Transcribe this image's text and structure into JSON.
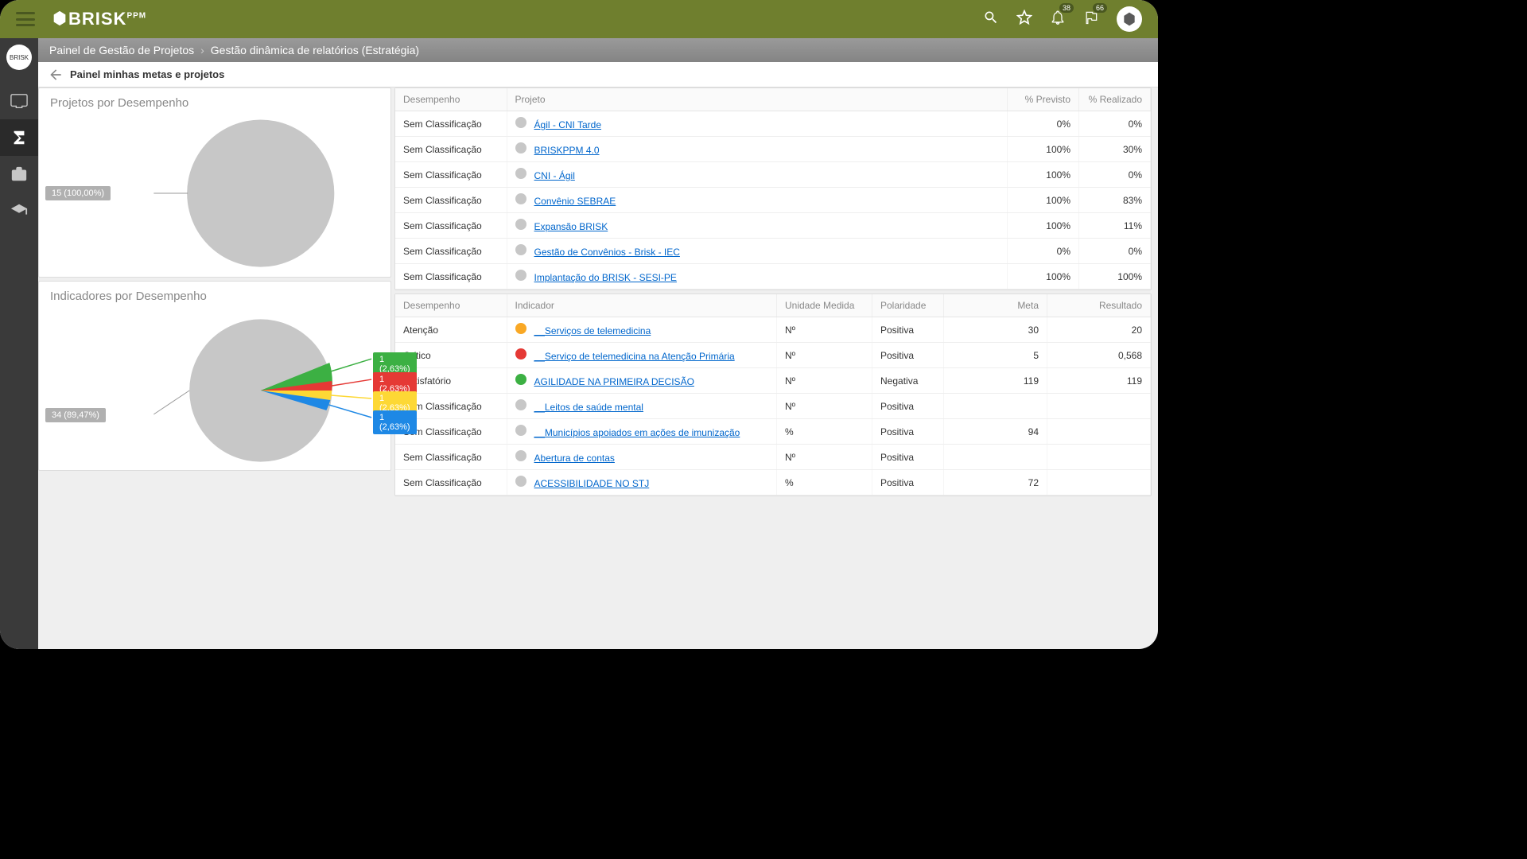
{
  "header": {
    "logo_text": "BRISK",
    "logo_sub": "PPM",
    "notif_badge": "38",
    "flag_badge": "66"
  },
  "breadcrumb": {
    "item1": "Painel de Gestão de Projetos",
    "item2": "Gestão dinâmica de relatórios (Estratégia)"
  },
  "subheader": {
    "title": "Painel minhas metas e projetos"
  },
  "chart1": {
    "title": "Projetos por Desempenho",
    "type": "pie",
    "slices": [
      {
        "label": "15 (100,00%)",
        "value": 100,
        "color": "#c7c7c7"
      }
    ],
    "label_bg": "#b0b0b0"
  },
  "chart2": {
    "title": "Indicadores por Desempenho",
    "type": "pie",
    "main_label": "34 (89,47%)",
    "main_color": "#c7c7c7",
    "slices": [
      {
        "label": "1 (2,63%)",
        "color": "#3cb043"
      },
      {
        "label": "1 (2,63%)",
        "color": "#e53935"
      },
      {
        "label": "1 (2,63%)",
        "color": "#fdd835"
      },
      {
        "label": "1 (2,63%)",
        "color": "#1e88e5"
      }
    ]
  },
  "table1": {
    "headers": {
      "c1": "Desempenho",
      "c2": "Projeto",
      "c3": "% Previsto",
      "c4": "% Realizado"
    },
    "rows": [
      {
        "desempenho": "Sem Classificação",
        "dot": "#c7c7c7",
        "projeto": "Ágil - CNI Tarde",
        "previsto": "0%",
        "realizado": "0%"
      },
      {
        "desempenho": "Sem Classificação",
        "dot": "#c7c7c7",
        "projeto": "BRISKPPM 4.0",
        "previsto": "100%",
        "realizado": "30%"
      },
      {
        "desempenho": "Sem Classificação",
        "dot": "#c7c7c7",
        "projeto": "CNI - Ágil",
        "previsto": "100%",
        "realizado": "0%"
      },
      {
        "desempenho": "Sem Classificação",
        "dot": "#c7c7c7",
        "projeto": "Convênio SEBRAE",
        "previsto": "100%",
        "realizado": "83%"
      },
      {
        "desempenho": "Sem Classificação",
        "dot": "#c7c7c7",
        "projeto": "Expansão BRISK",
        "previsto": "100%",
        "realizado": "11%"
      },
      {
        "desempenho": "Sem Classificação",
        "dot": "#c7c7c7",
        "projeto": "Gestão de Convênios - Brisk - IEC",
        "previsto": "0%",
        "realizado": "0%"
      },
      {
        "desempenho": "Sem Classificação",
        "dot": "#c7c7c7",
        "projeto": "Implantação do BRISK - SESI-PE",
        "previsto": "100%",
        "realizado": "100%"
      }
    ]
  },
  "table2": {
    "headers": {
      "c1": "Desempenho",
      "c2": "Indicador",
      "c3": "Unidade Medida",
      "c4": "Polaridade",
      "c5": "Meta",
      "c6": "Resultado"
    },
    "rows": [
      {
        "desempenho": "Atenção",
        "dot": "#f9a825",
        "indicador": "__Serviços de telemedicina",
        "unidade": "Nº",
        "polaridade": "Positiva",
        "meta": "30",
        "resultado": "20"
      },
      {
        "desempenho": "Crítico",
        "dot": "#e53935",
        "indicador": "__Serviço de telemedicina na Atenção Primária",
        "unidade": "Nº",
        "polaridade": "Positiva",
        "meta": "5",
        "resultado": "0,568"
      },
      {
        "desempenho": "Satisfatório",
        "dot": "#3cb043",
        "indicador": "AGILIDADE NA PRIMEIRA DECISÃO",
        "unidade": "Nº",
        "polaridade": "Negativa",
        "meta": "119",
        "resultado": "119"
      },
      {
        "desempenho": "Sem Classificação",
        "dot": "#c7c7c7",
        "indicador": "__Leitos de saúde mental",
        "unidade": "Nº",
        "polaridade": "Positiva",
        "meta": "",
        "resultado": ""
      },
      {
        "desempenho": "Sem Classificação",
        "dot": "#c7c7c7",
        "indicador": "__Municípios apoiados em ações de imunização",
        "unidade": "%",
        "polaridade": "Positiva",
        "meta": "94",
        "resultado": ""
      },
      {
        "desempenho": "Sem Classificação",
        "dot": "#c7c7c7",
        "indicador": "Abertura de contas",
        "unidade": "Nº",
        "polaridade": "Positiva",
        "meta": "",
        "resultado": ""
      },
      {
        "desempenho": "Sem Classificação",
        "dot": "#c7c7c7",
        "indicador": "ACESSIBILIDADE NO STJ",
        "unidade": "%",
        "polaridade": "Positiva",
        "meta": "72",
        "resultado": ""
      }
    ]
  },
  "colors": {
    "header_bg": "#6f7f2e",
    "gray": "#c7c7c7",
    "link": "#0066cc"
  }
}
